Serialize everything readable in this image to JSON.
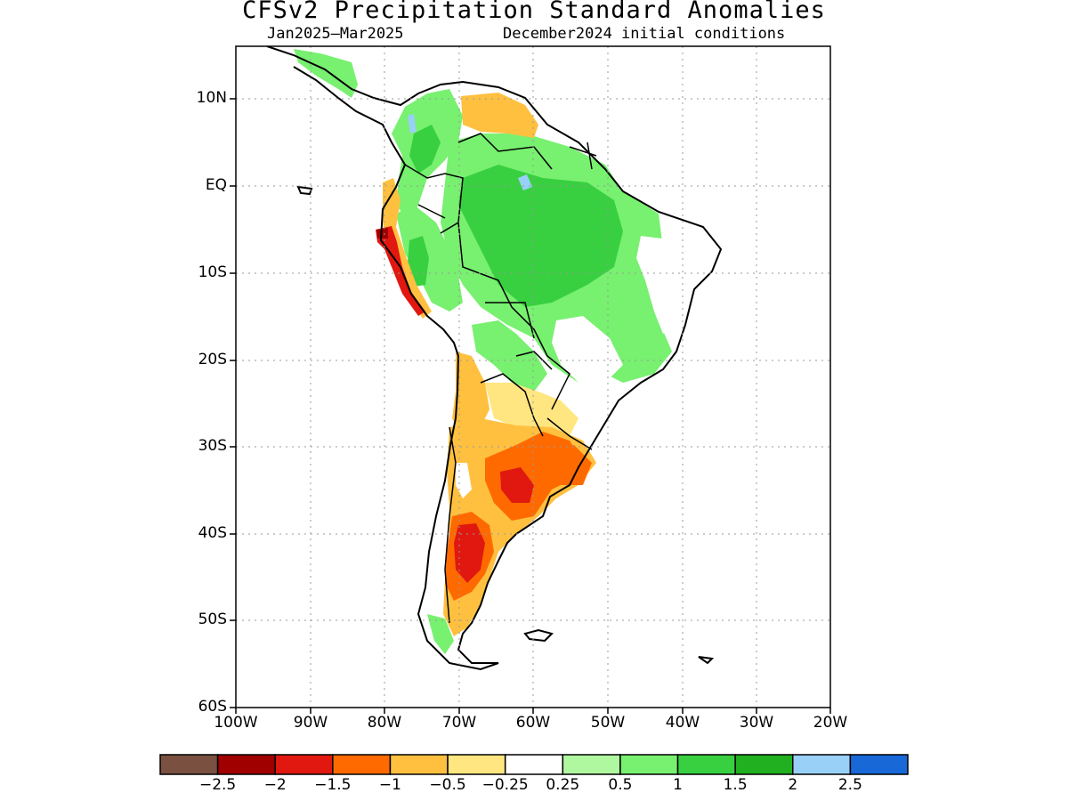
{
  "title": "CFSv2 Precipitation Standard Anomalies",
  "subtitle_left": "Jan2025–Mar2025",
  "subtitle_right": "December2024 initial conditions",
  "lat_labels": [
    "10N",
    "EQ",
    "10S",
    "20S",
    "30S",
    "40S",
    "50S",
    "60S"
  ],
  "lon_labels": [
    "100W",
    "90W",
    "80W",
    "70W",
    "60W",
    "50W",
    "40W",
    "30W",
    "20W"
  ],
  "colorbar": {
    "colors": [
      "#7a5040",
      "#a00000",
      "#e01810",
      "#ff6a00",
      "#ffc040",
      "#ffe680",
      "#ffffff",
      "#b0f8a0",
      "#78f070",
      "#38d040",
      "#20b020",
      "#98d0f8",
      "#1868d8"
    ],
    "labels": [
      "−2.5",
      "−2",
      "−1.5",
      "−1",
      "−0.5",
      "−0.25",
      "0.25",
      "0.5",
      "1",
      "1.5",
      "2",
      "2.5"
    ]
  },
  "map": {
    "region": "South America",
    "projection": "lat-lon",
    "lat_range": [
      -60,
      16
    ],
    "lon_range": [
      -100,
      -20
    ],
    "grid": true,
    "anomaly_regions": [
      {
        "name": "northwest-south-america",
        "value": 1.0,
        "color": "#78f070"
      },
      {
        "name": "amazon-basin",
        "value": 1.5,
        "color": "#38d040"
      },
      {
        "name": "northeast-brazil",
        "value": 0.5,
        "color": "#b0f8a0"
      },
      {
        "name": "peru-coast",
        "value": -1.5,
        "color": "#e01810"
      },
      {
        "name": "central-argentina",
        "value": -1.0,
        "color": "#ff6a00"
      },
      {
        "name": "northern-patagonia",
        "value": -1.5,
        "color": "#e01810"
      },
      {
        "name": "uruguay-south-brazil",
        "value": -1.0,
        "color": "#ff6a00"
      }
    ]
  }
}
